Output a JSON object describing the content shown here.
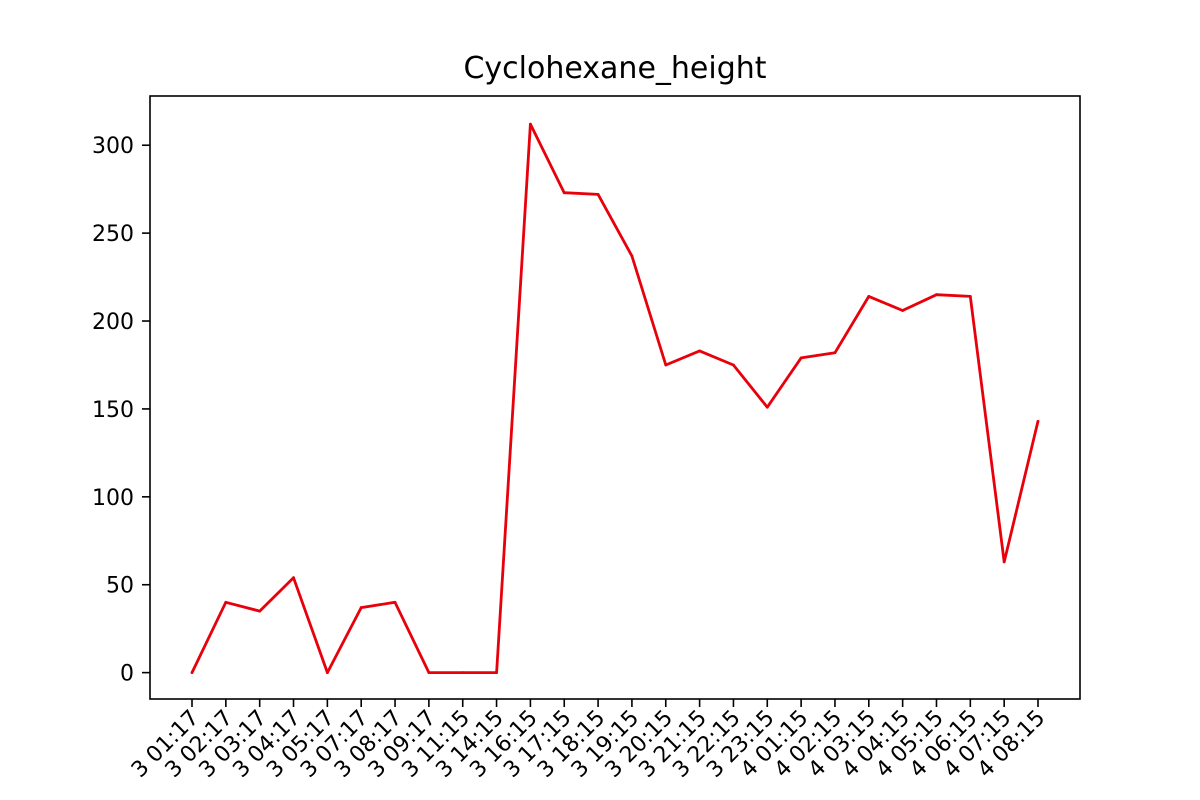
{
  "chart_data": {
    "type": "line",
    "title": "Cyclohexane_height",
    "xlabel": "",
    "ylabel": "",
    "ylim": [
      -15,
      328
    ],
    "yticks": [
      0,
      50,
      100,
      150,
      200,
      250,
      300
    ],
    "grid": false,
    "legend": "none",
    "line_color": "#e8000b",
    "x": [
      "3 01:17",
      "3 02:17",
      "3 03:17",
      "3 04:17",
      "3 05:17",
      "3 07:17",
      "3 08:17",
      "3 09:17",
      "3 11:15",
      "3 14:15",
      "3 16:15",
      "3 17:15",
      "3 18:15",
      "3 19:15",
      "3 20:15",
      "3 21:15",
      "3 22:15",
      "3 23:15",
      "4 01:15",
      "4 02:15",
      "4 03:15",
      "4 04:15",
      "4 05:15",
      "4 06:15",
      "4 07:15",
      "4 08:15"
    ],
    "series": [
      {
        "values": [
          0,
          40,
          35,
          54,
          0,
          37,
          40,
          0,
          0,
          0,
          312,
          273,
          272,
          237,
          175,
          183,
          175,
          151,
          179,
          182,
          214,
          206,
          215,
          214,
          63,
          143
        ]
      }
    ]
  }
}
